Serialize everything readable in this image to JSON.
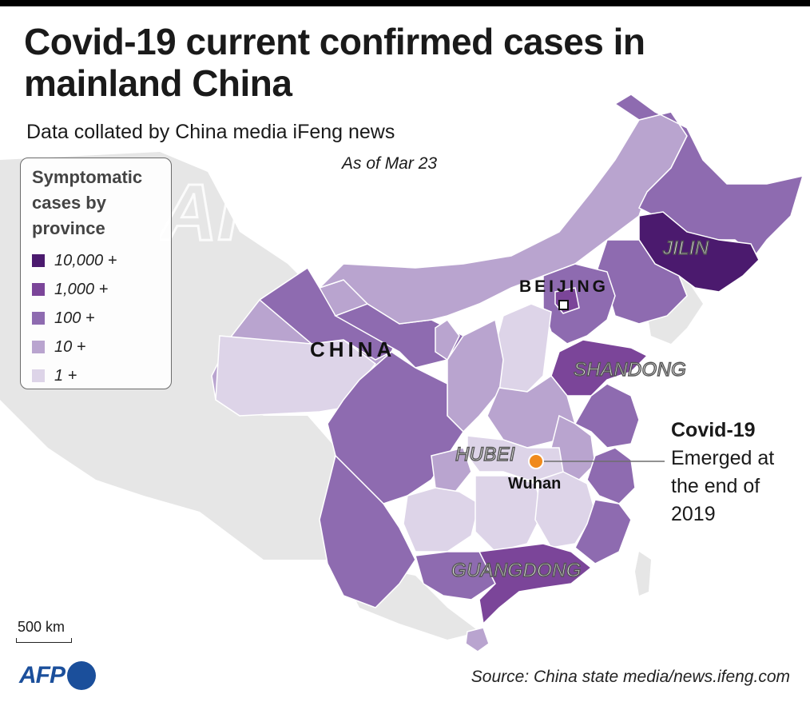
{
  "header": {
    "title": "Covid-19 current confirmed cases in mainland China",
    "subtitle": "Data collated by China media iFeng news",
    "date_note": "As of Mar 23"
  },
  "legend": {
    "title": "Symptomatic cases by province",
    "items": [
      {
        "label": "10,000 +",
        "color": "#4b1a6e"
      },
      {
        "label": "1,000 +",
        "color": "#7b4599"
      },
      {
        "label": "100 +",
        "color": "#8e6bb0"
      },
      {
        "label": "10 +",
        "color": "#b9a4cf"
      },
      {
        "label": "1 +",
        "color": "#ddd4e8"
      }
    ]
  },
  "colors": {
    "neighbor_land": "#e6e6e6",
    "sea": "#ffffff",
    "border_line": "#ffffff",
    "wuhan_marker": "#f08a1c",
    "afp_blue": "#1b4f9b"
  },
  "labels": {
    "country": "CHINA",
    "capital": "BEIJING",
    "provinces": {
      "jilin": "JILIN",
      "shandong": "SHANDONG",
      "hubei": "HUBEI",
      "guangdong": "GUANGDONG"
    },
    "city": "Wuhan"
  },
  "annotation": {
    "heading": "Covid-19",
    "line1": "Emerged at",
    "line2": "the end of",
    "line3": "2019"
  },
  "scale": {
    "label": "500 km"
  },
  "source": "Source: China state media/news.ifeng.com",
  "logo": {
    "text": "AFP",
    "icon": "afp-logo-circle"
  },
  "watermark": {
    "text": "AFP"
  }
}
